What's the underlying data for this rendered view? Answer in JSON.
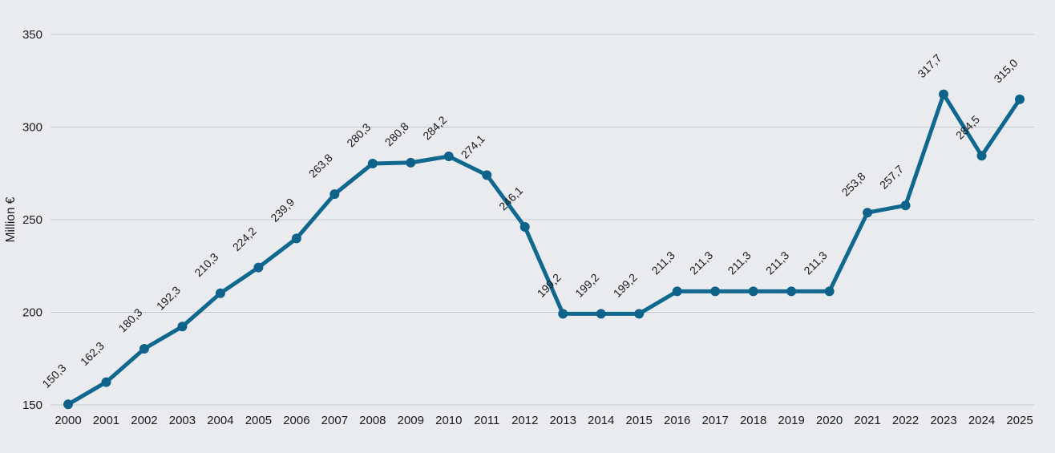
{
  "chart_data": {
    "type": "line",
    "title": "",
    "xlabel": "",
    "ylabel": "Million €",
    "categories": [
      "2000",
      "2001",
      "2002",
      "2003",
      "2004",
      "2005",
      "2006",
      "2007",
      "2008",
      "2009",
      "2010",
      "2011",
      "2012",
      "2013",
      "2014",
      "2015",
      "2016",
      "2017",
      "2018",
      "2019",
      "2020",
      "2021",
      "2022",
      "2023",
      "2024",
      "2025"
    ],
    "series": [
      {
        "name": "Million €",
        "values": [
          150.3,
          162.3,
          180.3,
          192.3,
          210.3,
          224.2,
          239.9,
          263.8,
          280.3,
          280.8,
          284.2,
          274.1,
          246.1,
          199.2,
          199.2,
          199.2,
          211.3,
          211.3,
          211.3,
          211.3,
          211.3,
          253.8,
          257.7,
          317.7,
          284.5,
          315.0
        ],
        "value_labels": [
          "150,3",
          "162,3",
          "180,3",
          "192,3",
          "210,3",
          "224,2",
          "239,9",
          "263,8",
          "280,3",
          "280,8",
          "284,2",
          "274,1",
          "246,1",
          "199,2",
          "199,2",
          "199,2",
          "211,3",
          "211,3",
          "211,3",
          "211,3",
          "211,3",
          "253,8",
          "257,7",
          "317,7",
          "284,5",
          "315,0"
        ]
      }
    ],
    "ylim": [
      150,
      350
    ],
    "yticks": [
      150,
      200,
      250,
      300,
      350
    ],
    "ytick_labels": [
      "150",
      "200",
      "250",
      "300",
      "350"
    ],
    "grid": true,
    "legend": "none",
    "colors": {
      "line": "#11688e",
      "marker": "#0f628a",
      "background": "#e9ebee",
      "gridline": "#c7cbd1",
      "text": "#1a1a1a"
    }
  }
}
